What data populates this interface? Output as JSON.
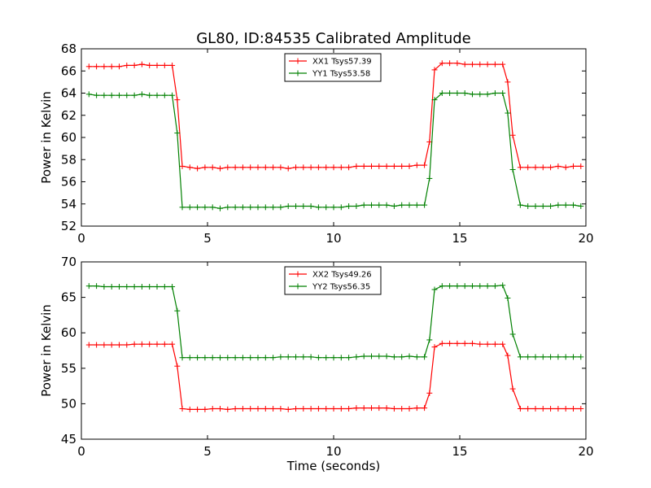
{
  "figure": {
    "title": "GL80, ID:84535 Calibrated Amplitude"
  },
  "chart_data": [
    {
      "type": "line",
      "ylabel": "Power in Kelvin",
      "xlabel": "",
      "xlim": [
        0,
        20
      ],
      "ylim": [
        52,
        68
      ],
      "xticks": [
        0,
        5,
        10,
        15,
        20
      ],
      "yticks": [
        52,
        54,
        56,
        58,
        60,
        62,
        64,
        66,
        68
      ],
      "legend_position": "top-center",
      "grid": false,
      "x": [
        0.3,
        0.6,
        0.9,
        1.2,
        1.5,
        1.8,
        2.1,
        2.4,
        2.7,
        3.0,
        3.3,
        3.6,
        3.8,
        4.0,
        4.3,
        4.6,
        4.9,
        5.2,
        5.5,
        5.8,
        6.1,
        6.4,
        6.7,
        7.0,
        7.3,
        7.6,
        7.9,
        8.2,
        8.5,
        8.8,
        9.1,
        9.4,
        9.7,
        10.0,
        10.3,
        10.6,
        10.9,
        11.2,
        11.5,
        11.8,
        12.1,
        12.4,
        12.7,
        13.0,
        13.3,
        13.6,
        13.8,
        14.0,
        14.3,
        14.6,
        14.9,
        15.2,
        15.5,
        15.8,
        16.1,
        16.4,
        16.7,
        16.9,
        17.1,
        17.4,
        17.7,
        18.0,
        18.3,
        18.6,
        18.9,
        19.2,
        19.5,
        19.8
      ],
      "series": [
        {
          "name": "XX1 Tsys57.39",
          "color": "#ff0000",
          "values": [
            66.4,
            66.4,
            66.4,
            66.4,
            66.4,
            66.5,
            66.5,
            66.6,
            66.5,
            66.5,
            66.5,
            66.5,
            63.4,
            57.4,
            57.3,
            57.2,
            57.3,
            57.3,
            57.2,
            57.3,
            57.3,
            57.3,
            57.3,
            57.3,
            57.3,
            57.3,
            57.3,
            57.2,
            57.3,
            57.3,
            57.3,
            57.3,
            57.3,
            57.3,
            57.3,
            57.3,
            57.4,
            57.4,
            57.4,
            57.4,
            57.4,
            57.4,
            57.4,
            57.4,
            57.5,
            57.5,
            59.6,
            66.1,
            66.7,
            66.7,
            66.7,
            66.6,
            66.6,
            66.6,
            66.6,
            66.6,
            66.6,
            65.0,
            60.2,
            57.3,
            57.3,
            57.3,
            57.3,
            57.3,
            57.4,
            57.3,
            57.4,
            57.4
          ]
        },
        {
          "name": "YY1 Tsys53.58",
          "color": "#008000",
          "values": [
            63.9,
            63.8,
            63.8,
            63.8,
            63.8,
            63.8,
            63.8,
            63.9,
            63.8,
            63.8,
            63.8,
            63.8,
            60.4,
            53.7,
            53.7,
            53.7,
            53.7,
            53.7,
            53.6,
            53.7,
            53.7,
            53.7,
            53.7,
            53.7,
            53.7,
            53.7,
            53.7,
            53.8,
            53.8,
            53.8,
            53.8,
            53.7,
            53.7,
            53.7,
            53.7,
            53.8,
            53.8,
            53.9,
            53.9,
            53.9,
            53.9,
            53.8,
            53.9,
            53.9,
            53.9,
            53.9,
            56.3,
            63.4,
            64.0,
            64.0,
            64.0,
            64.0,
            63.9,
            63.9,
            63.9,
            64.0,
            64.0,
            62.2,
            57.1,
            53.9,
            53.8,
            53.8,
            53.8,
            53.8,
            53.9,
            53.9,
            53.9,
            53.8
          ]
        }
      ]
    },
    {
      "type": "line",
      "ylabel": "Power in Kelvin",
      "xlabel": "Time (seconds)",
      "xlim": [
        0,
        20
      ],
      "ylim": [
        45,
        70
      ],
      "xticks": [
        0,
        5,
        10,
        15,
        20
      ],
      "yticks": [
        45,
        50,
        55,
        60,
        65,
        70
      ],
      "legend_position": "top-center",
      "grid": false,
      "x": [
        0.3,
        0.6,
        0.9,
        1.2,
        1.5,
        1.8,
        2.1,
        2.4,
        2.7,
        3.0,
        3.3,
        3.6,
        3.8,
        4.0,
        4.3,
        4.6,
        4.9,
        5.2,
        5.5,
        5.8,
        6.1,
        6.4,
        6.7,
        7.0,
        7.3,
        7.6,
        7.9,
        8.2,
        8.5,
        8.8,
        9.1,
        9.4,
        9.7,
        10.0,
        10.3,
        10.6,
        10.9,
        11.2,
        11.5,
        11.8,
        12.1,
        12.4,
        12.7,
        13.0,
        13.3,
        13.6,
        13.8,
        14.0,
        14.3,
        14.6,
        14.9,
        15.2,
        15.5,
        15.8,
        16.1,
        16.4,
        16.7,
        16.9,
        17.1,
        17.4,
        17.7,
        18.0,
        18.3,
        18.6,
        18.9,
        19.2,
        19.5,
        19.8
      ],
      "series": [
        {
          "name": "XX2 Tsys49.26",
          "color": "#ff0000",
          "values": [
            58.3,
            58.3,
            58.3,
            58.3,
            58.3,
            58.3,
            58.4,
            58.4,
            58.4,
            58.4,
            58.4,
            58.4,
            55.3,
            49.3,
            49.2,
            49.2,
            49.2,
            49.3,
            49.3,
            49.2,
            49.3,
            49.3,
            49.3,
            49.3,
            49.3,
            49.3,
            49.3,
            49.2,
            49.3,
            49.3,
            49.3,
            49.3,
            49.3,
            49.3,
            49.3,
            49.3,
            49.4,
            49.4,
            49.4,
            49.4,
            49.4,
            49.3,
            49.3,
            49.3,
            49.4,
            49.4,
            51.5,
            58.0,
            58.5,
            58.5,
            58.5,
            58.5,
            58.5,
            58.4,
            58.4,
            58.4,
            58.4,
            56.8,
            52.1,
            49.3,
            49.3,
            49.3,
            49.3,
            49.3,
            49.3,
            49.3,
            49.3,
            49.3
          ]
        },
        {
          "name": "YY2 Tsys56.35",
          "color": "#008000",
          "values": [
            66.6,
            66.6,
            66.5,
            66.5,
            66.5,
            66.5,
            66.5,
            66.5,
            66.5,
            66.5,
            66.5,
            66.5,
            63.1,
            56.5,
            56.5,
            56.5,
            56.5,
            56.5,
            56.5,
            56.5,
            56.5,
            56.5,
            56.5,
            56.5,
            56.5,
            56.5,
            56.6,
            56.6,
            56.6,
            56.6,
            56.6,
            56.5,
            56.5,
            56.5,
            56.5,
            56.5,
            56.6,
            56.7,
            56.7,
            56.7,
            56.7,
            56.6,
            56.6,
            56.7,
            56.6,
            56.6,
            59.0,
            66.1,
            66.6,
            66.6,
            66.6,
            66.6,
            66.6,
            66.6,
            66.6,
            66.6,
            66.7,
            64.9,
            59.8,
            56.6,
            56.6,
            56.6,
            56.6,
            56.6,
            56.6,
            56.6,
            56.6,
            56.6
          ]
        }
      ]
    }
  ]
}
